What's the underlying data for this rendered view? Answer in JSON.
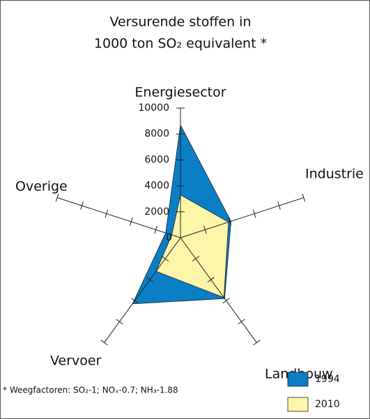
{
  "chart_data": {
    "type": "radar",
    "title": [
      "Versurende stoffen in",
      "1000 ton SO₂ equivalent *"
    ],
    "categories": [
      "Energiesector",
      "Industrie",
      "Landbouw",
      "Vervoer",
      "Overige"
    ],
    "series": [
      {
        "name": "1994",
        "color": "#0a7fc6",
        "values": [
          8700,
          4100,
          5800,
          6300,
          1200
        ]
      },
      {
        "name": "2010",
        "color": "#fcf5aa",
        "values": [
          3300,
          3900,
          5700,
          3200,
          700
        ]
      }
    ],
    "rlim": [
      0,
      10000
    ],
    "rticks": [
      0,
      2000,
      4000,
      6000,
      8000,
      10000
    ],
    "footnote": "* Weegfactoren: SO₂-1; NOₓ-0.7; NH₃-1.88"
  }
}
